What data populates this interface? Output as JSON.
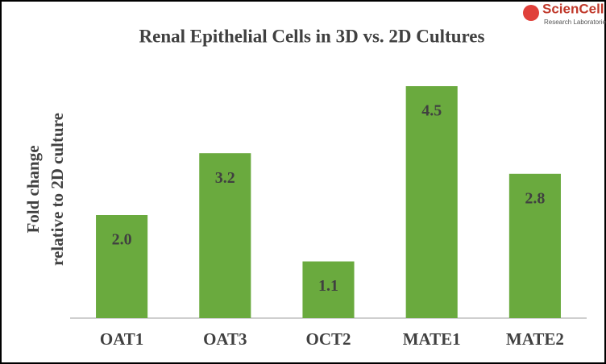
{
  "logo": {
    "name": "ScienCell",
    "tagline": "Research Laboratories"
  },
  "chart_data": {
    "type": "bar",
    "title": "Renal Epithelial Cells in 3D vs. 2D Cultures",
    "ylabel": [
      "Fold change",
      "relative to 2D culture"
    ],
    "categories": [
      "OAT1",
      "OAT3",
      "OCT2",
      "MATE1",
      "MATE2"
    ],
    "values": [
      2.0,
      3.2,
      1.1,
      4.5,
      2.8
    ],
    "value_labels": [
      "2.0",
      "3.2",
      "1.1",
      "4.5",
      "2.8"
    ],
    "color": "#6aaa3e",
    "ylim": [
      0,
      5
    ]
  }
}
